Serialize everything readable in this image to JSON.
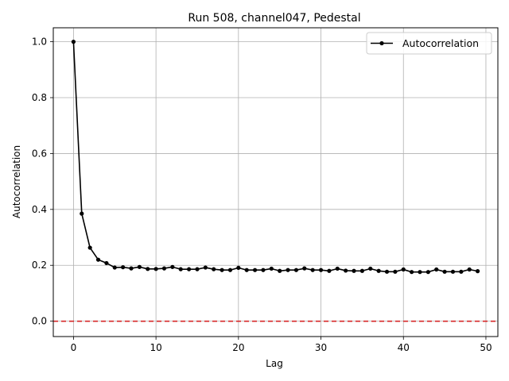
{
  "chart_data": {
    "type": "line",
    "title": "Run 508, channel047, Pedestal",
    "xlabel": "Lag",
    "ylabel": "Autocorrelation",
    "xlim": [
      -2.45,
      51.45
    ],
    "ylim": [
      -0.055,
      1.05
    ],
    "xticks": [
      0,
      10,
      20,
      30,
      40,
      50
    ],
    "yticks": [
      0.0,
      0.2,
      0.4,
      0.6,
      0.8,
      1.0
    ],
    "xtick_labels": [
      "0",
      "10",
      "20",
      "30",
      "40",
      "50"
    ],
    "ytick_labels": [
      "0.0",
      "0.2",
      "0.4",
      "0.6",
      "0.8",
      "1.0"
    ],
    "grid": true,
    "legend_position": "top-right",
    "reference_line": {
      "y": 0.0,
      "color": "#d62728",
      "style": "dashed"
    },
    "series": [
      {
        "name": "Autocorrelation",
        "color": "#000000",
        "marker": "circle",
        "x": [
          0,
          1,
          2,
          3,
          4,
          5,
          6,
          7,
          8,
          9,
          10,
          11,
          12,
          13,
          14,
          15,
          16,
          17,
          18,
          19,
          20,
          21,
          22,
          23,
          24,
          25,
          26,
          27,
          28,
          29,
          30,
          31,
          32,
          33,
          34,
          35,
          36,
          37,
          38,
          39,
          40,
          41,
          42,
          43,
          44,
          45,
          46,
          47,
          48,
          49
        ],
        "values": [
          1.0,
          0.385,
          0.263,
          0.22,
          0.208,
          0.192,
          0.193,
          0.189,
          0.194,
          0.187,
          0.187,
          0.189,
          0.194,
          0.186,
          0.186,
          0.186,
          0.192,
          0.186,
          0.183,
          0.183,
          0.191,
          0.183,
          0.183,
          0.183,
          0.188,
          0.18,
          0.183,
          0.183,
          0.189,
          0.183,
          0.183,
          0.18,
          0.188,
          0.181,
          0.18,
          0.18,
          0.188,
          0.18,
          0.177,
          0.177,
          0.185,
          0.176,
          0.176,
          0.176,
          0.185,
          0.177,
          0.177,
          0.177,
          0.185,
          0.179
        ]
      }
    ]
  }
}
